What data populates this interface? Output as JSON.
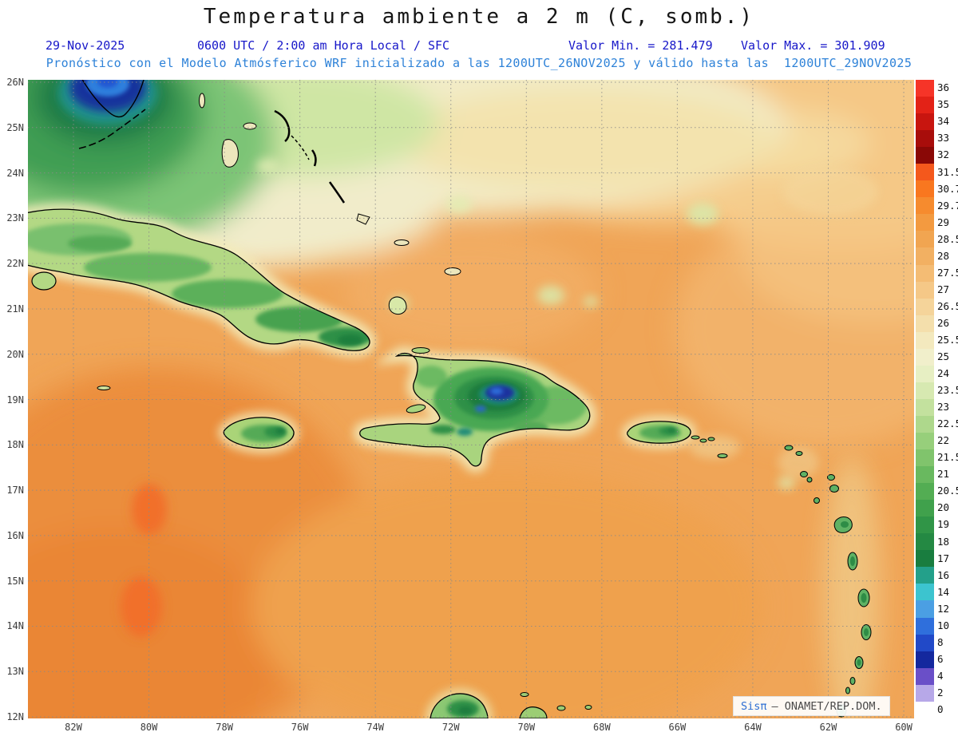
{
  "header": {
    "title": "Temperatura ambiente a 2 m (C, somb.)",
    "date": "29-Nov-2025",
    "time_line": "0600 UTC / 2:00 am Hora Local / SFC",
    "valor_min": "Valor Min. = 281.479",
    "valor_max": "Valor Max. = 301.909",
    "forecast_line": "Pronóstico con el Modelo Atmósferico WRF inicializado a las 1200UTC_26NOV2025 y válido hasta las  1200UTC_29NOV2025"
  },
  "axes": {
    "lat_labels": [
      "26N",
      "25N",
      "24N",
      "23N",
      "22N",
      "21N",
      "20N",
      "19N",
      "18N",
      "17N",
      "16N",
      "15N",
      "14N",
      "13N",
      "12N"
    ],
    "lon_labels": [
      "82W",
      "80W",
      "78W",
      "76W",
      "74W",
      "72W",
      "70W",
      "68W",
      "66W",
      "64W",
      "62W",
      "60W"
    ]
  },
  "colorbar": {
    "entries": [
      {
        "label": "36",
        "color": "#f63428"
      },
      {
        "label": "35",
        "color": "#e32217"
      },
      {
        "label": "34",
        "color": "#c8150f"
      },
      {
        "label": "33",
        "color": "#a80d0b"
      },
      {
        "label": "32",
        "color": "#8a0806"
      },
      {
        "label": "31.5",
        "color": "#f4581c"
      },
      {
        "label": "30.7",
        "color": "#f9771f"
      },
      {
        "label": "29.7",
        "color": "#f68b2e"
      },
      {
        "label": "29",
        "color": "#f39a40"
      },
      {
        "label": "28.5",
        "color": "#f1a551"
      },
      {
        "label": "28",
        "color": "#f2b062"
      },
      {
        "label": "27.5",
        "color": "#f4bc74"
      },
      {
        "label": "27",
        "color": "#f5c887"
      },
      {
        "label": "26.5",
        "color": "#f5d49a"
      },
      {
        "label": "26",
        "color": "#f4dfac"
      },
      {
        "label": "25.5",
        "color": "#f3e9be"
      },
      {
        "label": "25",
        "color": "#f1efcb"
      },
      {
        "label": "24",
        "color": "#e7efc3"
      },
      {
        "label": "23.5",
        "color": "#d7e9b1"
      },
      {
        "label": "23",
        "color": "#c3e19e"
      },
      {
        "label": "22.5",
        "color": "#aed88c"
      },
      {
        "label": "22",
        "color": "#97cf7b"
      },
      {
        "label": "21.5",
        "color": "#80c46c"
      },
      {
        "label": "21",
        "color": "#69b95f"
      },
      {
        "label": "20.5",
        "color": "#53ad53"
      },
      {
        "label": "20",
        "color": "#40a14c"
      },
      {
        "label": "19",
        "color": "#309547"
      },
      {
        "label": "18",
        "color": "#248943"
      },
      {
        "label": "17",
        "color": "#197d3f"
      },
      {
        "label": "16",
        "color": "#23a08a"
      },
      {
        "label": "14",
        "color": "#3cc4cf"
      },
      {
        "label": "12",
        "color": "#4b9fe3"
      },
      {
        "label": "10",
        "color": "#2f6fdc"
      },
      {
        "label": "8",
        "color": "#2149c8"
      },
      {
        "label": "6",
        "color": "#14289e"
      },
      {
        "label": "4",
        "color": "#6a4fc8"
      },
      {
        "label": "2",
        "color": "#b7a8e8"
      },
      {
        "label": "0",
        "color": "#ffffff"
      }
    ]
  },
  "watermark": {
    "brand": "Sisπ",
    "rest": "– ONAMET/REP.DOM."
  },
  "colors": {
    "sea_base": "#f0a557",
    "land_green": "#b3d884",
    "header_blue": "#1717c9",
    "forecast_blue": "#2e82d8"
  }
}
